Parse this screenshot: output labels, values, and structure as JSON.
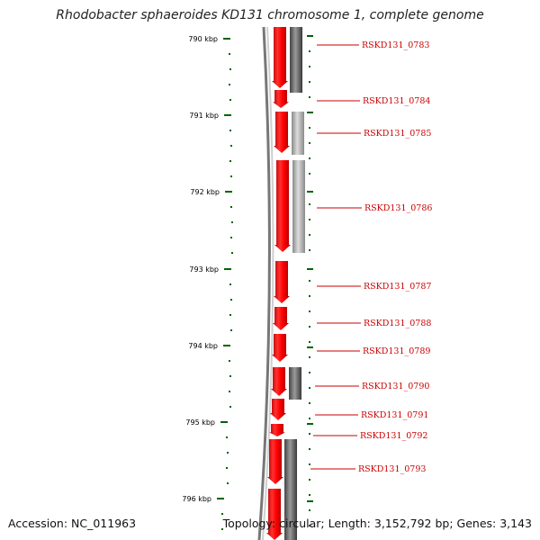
{
  "title": "Rhodobacter sphaeroides KD131 chromosome 1, complete genome",
  "footer": {
    "accession": "Accession: NC_011963",
    "stats": "Topology: circular; Length: 3,152,792 bp; Genes: 3,143"
  },
  "colors": {
    "forward_gene": "#ff0000",
    "reverse_gene": "#888888",
    "tick": "#006400",
    "label": "#cc0000"
  },
  "ruler_labels": [
    "790 kbp",
    "791 kbp",
    "792 kbp",
    "793 kbp",
    "794 kbp",
    "795 kbp",
    "796 kbp"
  ],
  "genes": [
    "RSKD131_0783",
    "RSKD131_0784",
    "RSKD131_0785",
    "RSKD131_0786",
    "RSKD131_0787",
    "RSKD131_0788",
    "RSKD131_0789",
    "RSKD131_0790",
    "RSKD131_0791",
    "RSKD131_0792",
    "RSKD131_0793"
  ]
}
